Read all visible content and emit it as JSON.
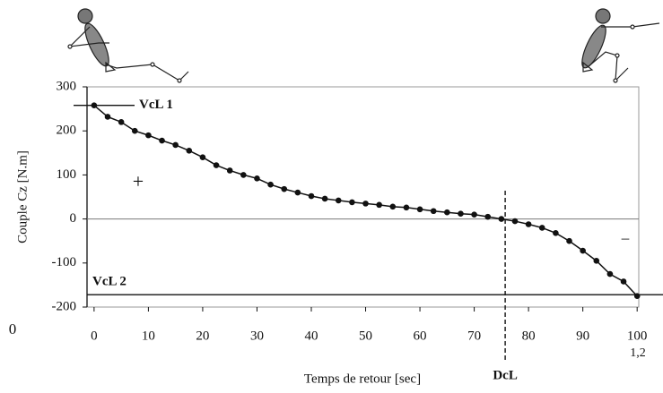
{
  "chart_data": {
    "type": "line",
    "x_label": "Temps de retour [sec]",
    "y_label": "Couple Cz [N.m]",
    "x": [
      0,
      2.5,
      5,
      7.5,
      10,
      12.5,
      15,
      17.5,
      20,
      22.5,
      25,
      27.5,
      30,
      32.5,
      35,
      37.5,
      40,
      42.5,
      45,
      47.5,
      50,
      52.5,
      55,
      57.5,
      60,
      62.5,
      65,
      67.5,
      70,
      72.5,
      75,
      77.5,
      80,
      82.5,
      85,
      87.5,
      90,
      92.5,
      95,
      97.5,
      100
    ],
    "values": [
      258,
      232,
      220,
      200,
      190,
      178,
      168,
      155,
      140,
      122,
      110,
      100,
      92,
      78,
      68,
      60,
      52,
      46,
      42,
      38,
      35,
      32,
      28,
      26,
      22,
      18,
      15,
      12,
      10,
      5,
      0,
      -5,
      -12,
      -20,
      -32,
      -50,
      -72,
      -95,
      -125,
      -142,
      -175
    ],
    "color": "#111111",
    "xlim": [
      -1.3,
      100.3
    ],
    "ylim": [
      -200,
      300
    ],
    "xticks": [
      0,
      10,
      20,
      30,
      40,
      50,
      60,
      70,
      80,
      90,
      100
    ],
    "yticks": [
      300,
      200,
      100,
      0,
      -100,
      -200
    ],
    "reference_lines": [
      {
        "y": 258,
        "label": "VcL 1"
      },
      {
        "y": -172,
        "label": "VcL 2"
      },
      {
        "y": 0
      },
      {
        "x": 75.7,
        "label": "DcL",
        "style": "dashed"
      }
    ],
    "annotations": [
      "+",
      "–",
      "0",
      "1,2"
    ]
  }
}
